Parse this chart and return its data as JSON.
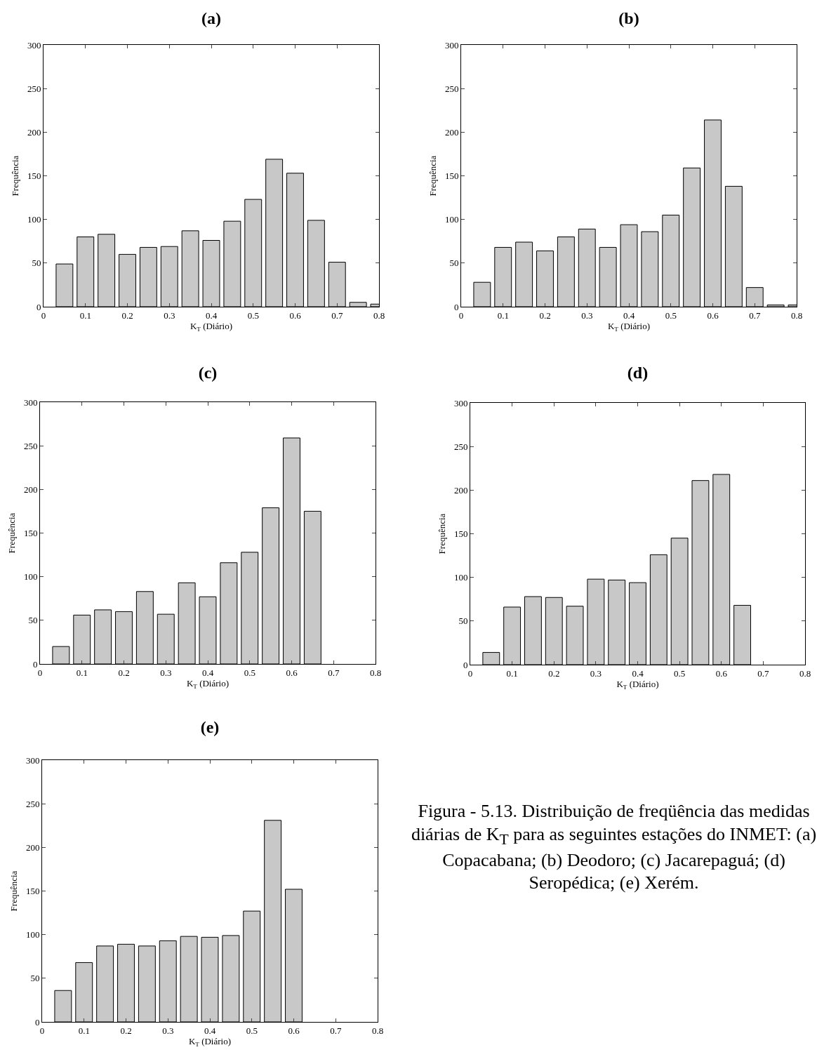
{
  "chart_data": [
    {
      "type": "bar",
      "title": "(a)",
      "xlabel": "K$_{T}$ (Diário)",
      "ylabel": "Frequência",
      "color": "#c8c8c8",
      "x": [
        0.05,
        0.1,
        0.15,
        0.2,
        0.25,
        0.3,
        0.35,
        0.4,
        0.45,
        0.5,
        0.55,
        0.6,
        0.65,
        0.7,
        0.75,
        0.8
      ],
      "values": [
        49,
        80,
        83,
        60,
        68,
        69,
        87,
        76,
        98,
        123,
        169,
        153,
        99,
        51,
        5,
        3
      ],
      "xlim": [
        0,
        0.8
      ],
      "xticks": [
        0,
        0.1,
        0.2,
        0.3,
        0.4,
        0.5,
        0.6,
        0.7,
        0.8
      ],
      "ylim": [
        0,
        300
      ],
      "yticks": [
        0,
        50,
        100,
        150,
        200,
        250,
        300
      ],
      "grid": false,
      "legend": false
    },
    {
      "type": "bar",
      "title": "(b)",
      "xlabel": "K$_{T}$ (Diário)",
      "ylabel": "Frequência",
      "color": "#c8c8c8",
      "x": [
        0.05,
        0.1,
        0.15,
        0.2,
        0.25,
        0.3,
        0.35,
        0.4,
        0.45,
        0.5,
        0.55,
        0.6,
        0.65,
        0.7,
        0.75,
        0.8
      ],
      "values": [
        28,
        68,
        74,
        64,
        80,
        89,
        68,
        94,
        86,
        105,
        159,
        214,
        138,
        22,
        2,
        2
      ],
      "xlim": [
        0,
        0.8
      ],
      "xticks": [
        0,
        0.1,
        0.2,
        0.3,
        0.4,
        0.5,
        0.6,
        0.7,
        0.8
      ],
      "ylim": [
        0,
        300
      ],
      "yticks": [
        0,
        50,
        100,
        150,
        200,
        250,
        300
      ],
      "grid": false,
      "legend": false
    },
    {
      "type": "bar",
      "title": "(c)",
      "xlabel": "K$_{T}$ (Diário)",
      "ylabel": "Frequência",
      "color": "#c8c8c8",
      "x": [
        0.05,
        0.1,
        0.15,
        0.2,
        0.25,
        0.3,
        0.35,
        0.4,
        0.45,
        0.5,
        0.55,
        0.6,
        0.65
      ],
      "values": [
        20,
        56,
        62,
        60,
        83,
        57,
        93,
        77,
        116,
        128,
        179,
        259,
        175
      ],
      "xlim": [
        0,
        0.8
      ],
      "xticks": [
        0,
        0.1,
        0.2,
        0.3,
        0.4,
        0.5,
        0.6,
        0.7,
        0.8
      ],
      "ylim": [
        0,
        300
      ],
      "yticks": [
        0,
        50,
        100,
        150,
        200,
        250,
        300
      ],
      "grid": false,
      "legend": false
    },
    {
      "type": "bar",
      "title": "(d)",
      "xlabel": "K$_{T}$ (Diário)",
      "ylabel": "Frequência",
      "color": "#c8c8c8",
      "x": [
        0.05,
        0.1,
        0.15,
        0.2,
        0.25,
        0.3,
        0.35,
        0.4,
        0.45,
        0.5,
        0.55,
        0.6,
        0.65
      ],
      "values": [
        14,
        66,
        78,
        77,
        67,
        98,
        97,
        94,
        126,
        145,
        211,
        218,
        68
      ],
      "xlim": [
        0,
        0.8
      ],
      "xticks": [
        0,
        0.1,
        0.2,
        0.3,
        0.4,
        0.5,
        0.6,
        0.7,
        0.8
      ],
      "ylim": [
        0,
        300
      ],
      "yticks": [
        0,
        50,
        100,
        150,
        200,
        250,
        300
      ],
      "grid": false,
      "legend": false
    },
    {
      "type": "bar",
      "title": "(e)",
      "xlabel": "K$_{T}$ (Diário)",
      "ylabel": "Frequência",
      "color": "#c8c8c8",
      "x": [
        0.05,
        0.1,
        0.15,
        0.2,
        0.25,
        0.3,
        0.35,
        0.4,
        0.45,
        0.5,
        0.55,
        0.6
      ],
      "values": [
        36,
        68,
        87,
        89,
        87,
        93,
        98,
        97,
        99,
        127,
        231,
        152
      ],
      "xlim": [
        0,
        0.8
      ],
      "xticks": [
        0,
        0.1,
        0.2,
        0.3,
        0.4,
        0.5,
        0.6,
        0.7,
        0.8
      ],
      "ylim": [
        0,
        300
      ],
      "yticks": [
        0,
        50,
        100,
        150,
        200,
        250,
        300
      ],
      "grid": false,
      "legend": false
    },
    {
      "type": "other",
      "annotations": [
        "Figura - 5.13. Distribuição de freqüência das medidas diárias de K$_{T}$ para as seguintes estações do INMET: (a) Copacabana; (b) Deodoro; (c) Jacarepaguá; (d) Seropédica; (e) Xerém."
      ]
    }
  ]
}
